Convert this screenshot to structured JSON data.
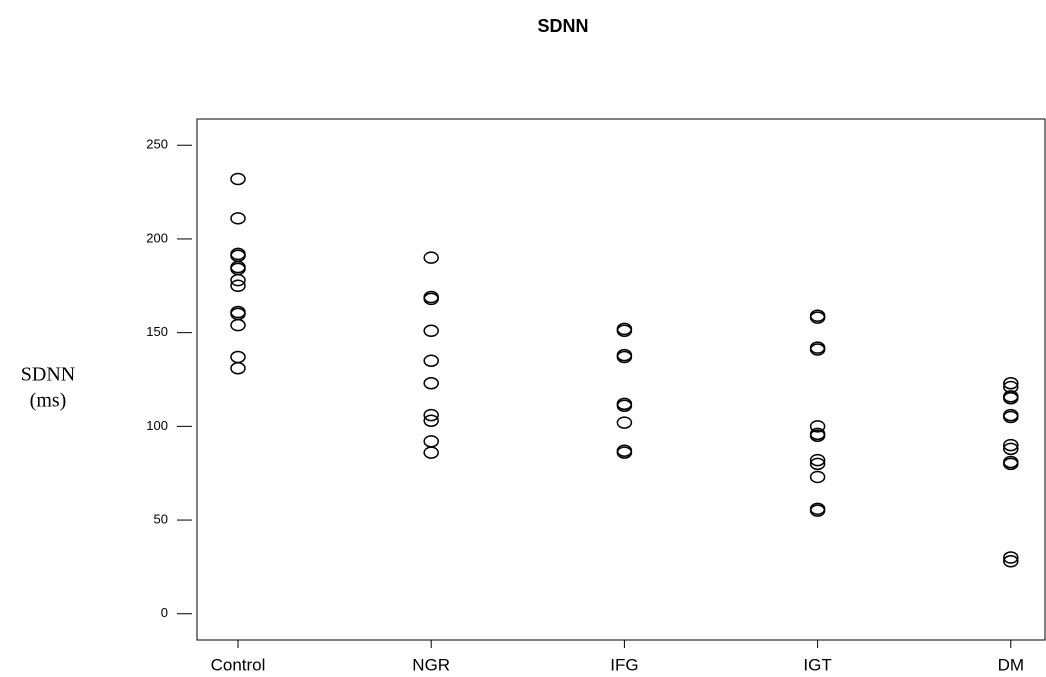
{
  "chart_data": {
    "type": "strip",
    "title": "SDNN",
    "ylabel": [
      "SDNN",
      "(ms)"
    ],
    "categories": [
      "Control",
      "NGR",
      "IFG",
      "IGT",
      "DM"
    ],
    "values": [
      [
        232,
        211,
        192,
        191,
        185,
        184,
        178,
        175,
        161,
        160,
        154,
        137,
        131
      ],
      [
        190,
        169,
        168,
        151,
        135,
        123,
        106,
        103,
        92,
        86
      ],
      [
        152,
        151,
        138,
        137,
        112,
        111,
        102,
        87,
        86
      ],
      [
        159,
        158,
        142,
        141,
        100,
        96,
        95,
        82,
        80,
        73,
        56,
        55
      ],
      [
        123,
        121,
        116,
        115,
        106,
        105,
        90,
        88,
        81,
        80,
        30,
        28
      ]
    ],
    "color": "#000000",
    "ylim": [
      -14,
      264
    ],
    "yticks": [
      0,
      50,
      100,
      150,
      200,
      250
    ]
  }
}
